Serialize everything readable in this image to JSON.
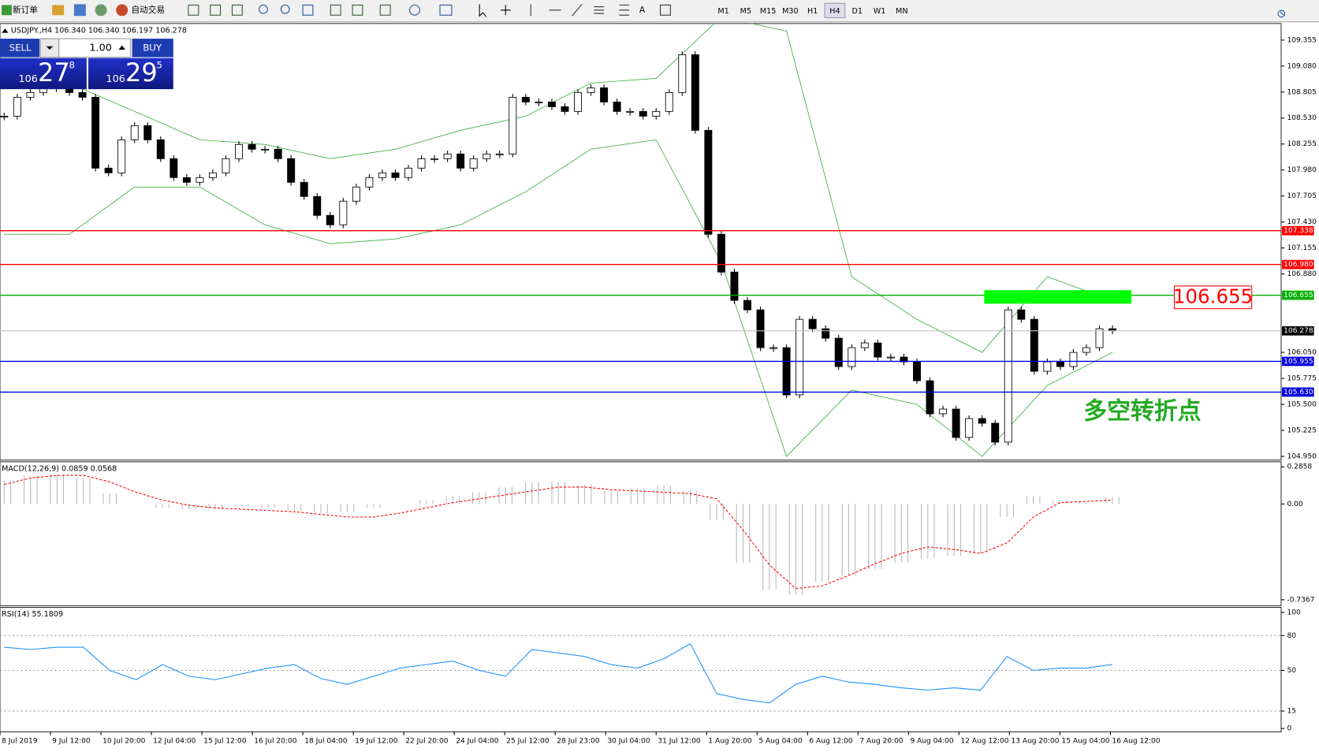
{
  "toolbar": {
    "buttons": [
      "新订单",
      "自动交易"
    ],
    "timeframes": [
      "M1",
      "M5",
      "M15",
      "M30",
      "H1",
      "H4",
      "D1",
      "W1",
      "MN"
    ]
  },
  "header": {
    "symbol_info": "USDJPY.,H4 106.340 106.340 106.197 106.278"
  },
  "trade_panel": {
    "sell": "SELL",
    "lot": "1.00",
    "buy": "BUY",
    "bid": {
      "big": "106",
      "main": "27",
      "pip": "8"
    },
    "ask": {
      "big": "106",
      "main": "29",
      "pip": "5"
    }
  },
  "price_chart": {
    "type": "candlestick",
    "ylim": [
      104.91,
      109.53
    ],
    "yticks": [
      109.355,
      {
        "value": 109.08,
        "label": "109.080"
      },
      108.805,
      {
        "value": 108.53,
        "label": "108.530"
      },
      108.255,
      {
        "value": 107.98,
        "label": "107.980"
      },
      107.705,
      {
        "value": 107.43,
        "label": "107.430"
      },
      107.155,
      {
        "value": 106.88,
        "label": "106.880"
      },
      {
        "value": 106.05,
        "label": "106.050"
      },
      105.775,
      {
        "value": 105.5,
        "label": "105.500"
      },
      105.225,
      {
        "value": 104.95,
        "label": "104.950"
      }
    ],
    "levels": [
      {
        "value": 107.338,
        "label": "107.338",
        "color": "#ff0000"
      },
      {
        "value": 106.98,
        "label": "106.980",
        "color": "#ff0000"
      },
      {
        "value": 106.655,
        "label": "106.655",
        "color": "#00b000"
      },
      {
        "value": 106.278,
        "label": "106.278",
        "color": "#000000"
      },
      {
        "value": 105.955,
        "label": "105.955",
        "color": "#0000dd"
      },
      {
        "value": 105.63,
        "label": "105.630",
        "color": "#0000dd"
      }
    ],
    "close": [
      108.55,
      108.75,
      108.8,
      108.85,
      108.85,
      108.8,
      108.75,
      108.0,
      107.95,
      108.3,
      108.45,
      108.3,
      108.1,
      107.9,
      107.85,
      107.9,
      107.95,
      108.1,
      108.25,
      108.2,
      108.2,
      108.1,
      107.85,
      107.7,
      107.5,
      107.4,
      107.65,
      107.8,
      107.9,
      107.95,
      107.9,
      108.0,
      108.1,
      108.1,
      108.15,
      108.0,
      108.1,
      108.15,
      108.15,
      108.75,
      108.7,
      108.7,
      108.65,
      108.6,
      108.8,
      108.85,
      108.7,
      108.6,
      108.6,
      108.55,
      108.6,
      108.8,
      109.2,
      108.4,
      107.3,
      106.9,
      106.6,
      106.5,
      106.1,
      106.1,
      105.6,
      106.4,
      106.3,
      106.2,
      105.9,
      106.1,
      106.15,
      106.0,
      106.0,
      105.95,
      105.75,
      105.4,
      105.45,
      105.15,
      105.35,
      105.3,
      105.1,
      106.5,
      106.4,
      105.85,
      105.95,
      105.9,
      106.05,
      106.1,
      106.3,
      106.278
    ],
    "band_upper": [
      108.95,
      108.9,
      108.6,
      108.3,
      108.25,
      108.1,
      108.2,
      108.4,
      108.55,
      108.9,
      108.95,
      109.6,
      109.45,
      106.85,
      106.4,
      106.05,
      106.85,
      106.6
    ],
    "band_lower": [
      107.3,
      107.3,
      107.8,
      107.8,
      107.4,
      107.2,
      107.25,
      107.4,
      107.75,
      108.2,
      108.3,
      107.0,
      104.95,
      105.65,
      105.5,
      104.95,
      105.7,
      106.05
    ],
    "annotation_price": "106.655",
    "annotation_text": "多空转折点"
  },
  "macd": {
    "label": "MACD(12,26,9) 0.0859 0.0568",
    "ylim": [
      -0.782,
      0.3246
    ],
    "yticks": [
      0.2858,
      {
        "value": 0,
        "label": "0.00"
      },
      -0.7367
    ],
    "histogram": [
      0.18,
      0.22,
      0.23,
      0.2,
      0.08,
      0.0,
      -0.03,
      -0.04,
      -0.04,
      -0.02,
      -0.03,
      -0.05,
      -0.07,
      -0.06,
      -0.03,
      0.0,
      0.03,
      0.06,
      0.09,
      0.13,
      0.17,
      0.17,
      0.15,
      0.1,
      0.12,
      0.14,
      0.1,
      -0.12,
      -0.45,
      -0.66,
      -0.7,
      -0.6,
      -0.55,
      -0.5,
      -0.45,
      -0.42,
      -0.4,
      -0.38,
      -0.1,
      0.06,
      0.03,
      0.01,
      0.05
    ],
    "signal": [
      0.15,
      0.2,
      0.22,
      0.22,
      0.17,
      0.09,
      0.03,
      -0.01,
      -0.03,
      -0.04,
      -0.05,
      -0.06,
      -0.08,
      -0.1,
      -0.1,
      -0.07,
      -0.03,
      0.01,
      0.04,
      0.07,
      0.1,
      0.13,
      0.13,
      0.11,
      0.1,
      0.09,
      0.08,
      0.04,
      -0.2,
      -0.47,
      -0.65,
      -0.63,
      -0.55,
      -0.46,
      -0.38,
      -0.33,
      -0.35,
      -0.38,
      -0.3,
      -0.1,
      0.01,
      0.02,
      0.03
    ]
  },
  "rsi": {
    "label": "RSI(14) 55.1809",
    "ylim": [
      0,
      100
    ],
    "yticks": [
      100,
      80,
      50,
      15,
      0
    ],
    "levels": [
      80,
      50,
      15
    ],
    "values": [
      70,
      68,
      70,
      70,
      50,
      42,
      55,
      45,
      42,
      47,
      52,
      55,
      43,
      38,
      45,
      52,
      55,
      58,
      50,
      45,
      68,
      65,
      62,
      55,
      52,
      60,
      73,
      30,
      25,
      22,
      38,
      45,
      40,
      38,
      35,
      33,
      35,
      33,
      62,
      50,
      52,
      52,
      55.1809
    ]
  },
  "time_axis": {
    "labels": [
      "8 Jul 2019",
      "9 Jul 12:00",
      "10 Jul 20:00",
      "12 Jul 04:00",
      "15 Jul 12:00",
      "16 Jul 20:00",
      "18 Jul 04:00",
      "19 Jul 12:00",
      "22 Jul 20:00",
      "24 Jul 04:00",
      "25 Jul 12:00",
      "28 Jul 23:00",
      "30 Jul 04:00",
      "31 Jul 12:00",
      "1 Aug 20:00",
      "5 Aug 04:00",
      "6 Aug 12:00",
      "7 Aug 20:00",
      "9 Aug 04:00",
      "12 Aug 12:00",
      "13 Aug 20:00",
      "15 Aug 04:00",
      "16 Aug 12:00"
    ]
  }
}
